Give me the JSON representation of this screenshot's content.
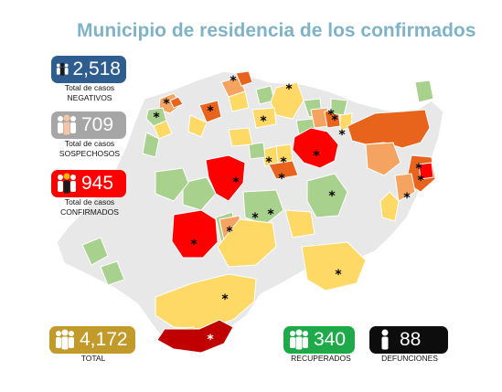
{
  "title": "Municipio de residencia de los confirmados",
  "stats": {
    "negativos": {
      "value": "2,518",
      "caption_line1": "Total de casos",
      "caption_line2": "NEGATIVOS",
      "color": "#2e5d8f",
      "icon": "people-icon"
    },
    "sospechosos": {
      "value": "709",
      "caption_line1": "Total de casos",
      "caption_line2": "SOSPECHOSOS",
      "color": "#a6a6a6",
      "icon": "people-icon"
    },
    "confirmados": {
      "value": "945",
      "caption_line1": "Total de casos",
      "caption_line2": "CONFIRMADOS",
      "color": "#ff0000",
      "icon": "people-icon"
    },
    "total": {
      "value": "4,172",
      "caption": "TOTAL",
      "color": "#c19a2a",
      "icon": "people-icon"
    },
    "recuperados": {
      "value": "340",
      "caption": "RECUPERADOS",
      "color": "#1faa4a",
      "icon": "people-icon"
    },
    "defunciones": {
      "value": "88",
      "caption": "DEFUNCIONES",
      "color": "#0d0d0d",
      "icon": "person-icon"
    }
  },
  "map_colors": {
    "no_cases": "#e8e8e8",
    "low": "#a9d18e",
    "medium": "#ffd966",
    "high": "#f4a460",
    "higher": "#e8631c",
    "highest": "#ff0000",
    "coast": "#c00000"
  },
  "map_marker": "*"
}
